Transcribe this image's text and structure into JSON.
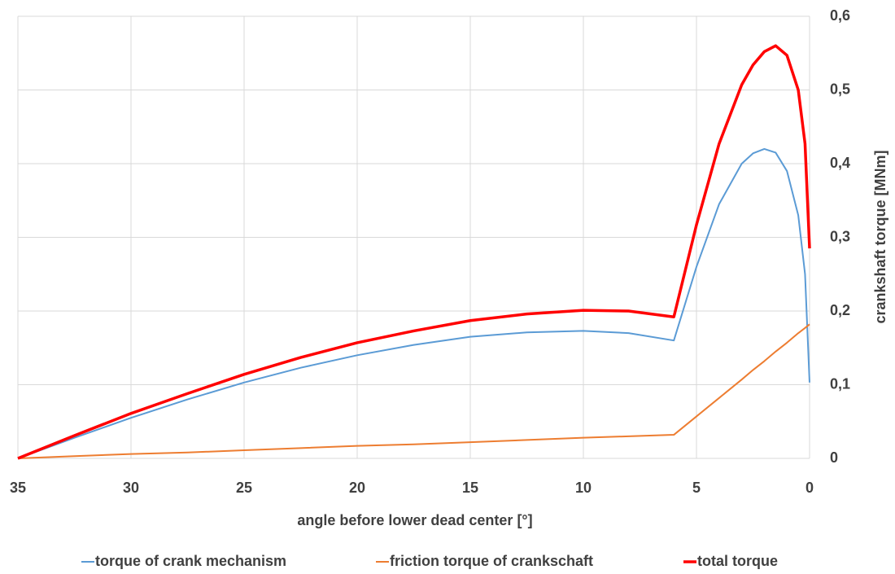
{
  "chart_data": {
    "type": "line",
    "x_label": "angle before lower dead center [°]",
    "y_label": "crankshaft  torque [MNm]",
    "x": [
      35,
      32.5,
      30,
      27.5,
      25,
      22.5,
      20,
      17.5,
      15,
      12.5,
      10,
      8,
      6,
      5,
      4,
      3,
      2.5,
      2,
      1.5,
      1,
      0.5,
      0.2,
      0
    ],
    "series": [
      {
        "name": "torque of crank mechanism",
        "color": "#5b9bd5",
        "width": 2,
        "values": [
          0,
          0.028,
          0.055,
          0.08,
          0.103,
          0.123,
          0.14,
          0.154,
          0.165,
          0.171,
          0.173,
          0.17,
          0.16,
          0.26,
          0.345,
          0.4,
          0.414,
          0.42,
          0.415,
          0.39,
          0.33,
          0.25,
          0.103
        ]
      },
      {
        "name": "friction torque of crankschaft",
        "color": "#ed7d31",
        "width": 2,
        "values": [
          0,
          0.003,
          0.006,
          0.008,
          0.011,
          0.014,
          0.017,
          0.019,
          0.022,
          0.025,
          0.028,
          0.03,
          0.032,
          0.057,
          0.082,
          0.107,
          0.12,
          0.132,
          0.145,
          0.157,
          0.17,
          0.177,
          0.182
        ]
      },
      {
        "name": "total torque",
        "color": "#ff0000",
        "width": 3.5,
        "values": [
          0,
          0.031,
          0.061,
          0.088,
          0.114,
          0.137,
          0.157,
          0.173,
          0.187,
          0.196,
          0.201,
          0.2,
          0.192,
          0.317,
          0.427,
          0.507,
          0.534,
          0.552,
          0.56,
          0.547,
          0.5,
          0.427,
          0.285
        ]
      }
    ],
    "xlim": [
      35,
      0
    ],
    "xticks": [
      35,
      30,
      25,
      20,
      15,
      10,
      5,
      0
    ],
    "ylim": [
      0,
      0.6
    ],
    "yticks": [
      0,
      {
        "value": 0.1,
        "label": "0,1"
      },
      {
        "value": 0.2,
        "label": "0,2"
      },
      {
        "value": 0.3,
        "label": "0,3"
      },
      {
        "value": 0.4,
        "label": "0,4"
      },
      {
        "value": 0.5,
        "label": "0,5"
      },
      {
        "value": 0.6,
        "label": "0,6"
      }
    ],
    "grid": true,
    "legend": "bottom"
  }
}
